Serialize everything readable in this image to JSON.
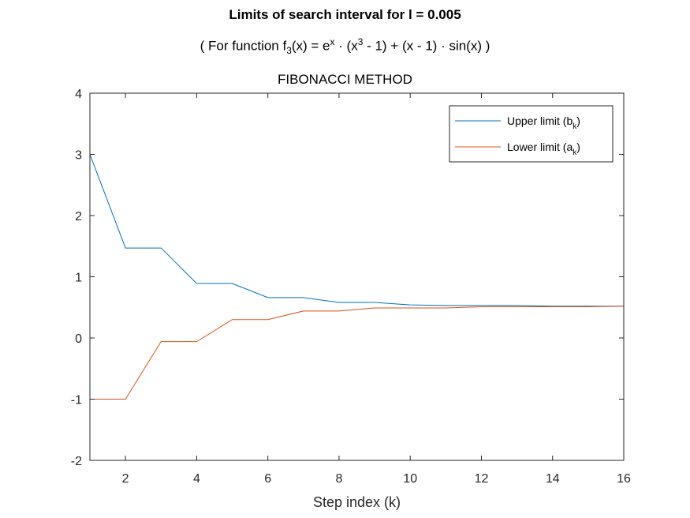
{
  "chart_data": {
    "type": "line",
    "title": "Limits of search interval for l = 0.005",
    "subtitle": {
      "prefix": "( For function f",
      "f_sub": "3",
      "mid1": "(x) = e",
      "e_sup": "x",
      "mid2": " · (x",
      "x_sup": "3",
      "suffix": " - 1) + (x - 1) · sin(x) )"
    },
    "method": "FIBONACCI METHOD",
    "xlabel": "Step index (k)",
    "ylabel": "",
    "xlim": [
      1,
      16
    ],
    "ylim": [
      -2,
      4
    ],
    "xticks": [
      2,
      4,
      6,
      8,
      10,
      12,
      14,
      16
    ],
    "yticks": [
      -2,
      -1,
      0,
      1,
      2,
      3,
      4
    ],
    "grid": false,
    "legend_position": "top-right",
    "x": [
      1,
      2,
      3,
      4,
      5,
      6,
      7,
      8,
      9,
      10,
      11,
      12,
      13,
      14,
      15,
      16
    ],
    "series": [
      {
        "name": "Upper limit (b_k)",
        "legend": {
          "base": "Upper limit (b",
          "sub": "k",
          "close": ")"
        },
        "color": "#0072BD",
        "values": [
          3.0,
          1.47,
          1.47,
          0.89,
          0.89,
          0.66,
          0.66,
          0.58,
          0.58,
          0.54,
          0.53,
          0.53,
          0.53,
          0.52,
          0.52,
          0.52
        ]
      },
      {
        "name": "Lower limit (a_k)",
        "legend": {
          "base": "Lower limit (a",
          "sub": "k",
          "close": ")"
        },
        "color": "#D95319",
        "values": [
          -1.0,
          -1.0,
          -0.06,
          -0.06,
          0.3,
          0.3,
          0.44,
          0.44,
          0.49,
          0.49,
          0.49,
          0.51,
          0.51,
          0.51,
          0.51,
          0.52
        ]
      }
    ]
  }
}
